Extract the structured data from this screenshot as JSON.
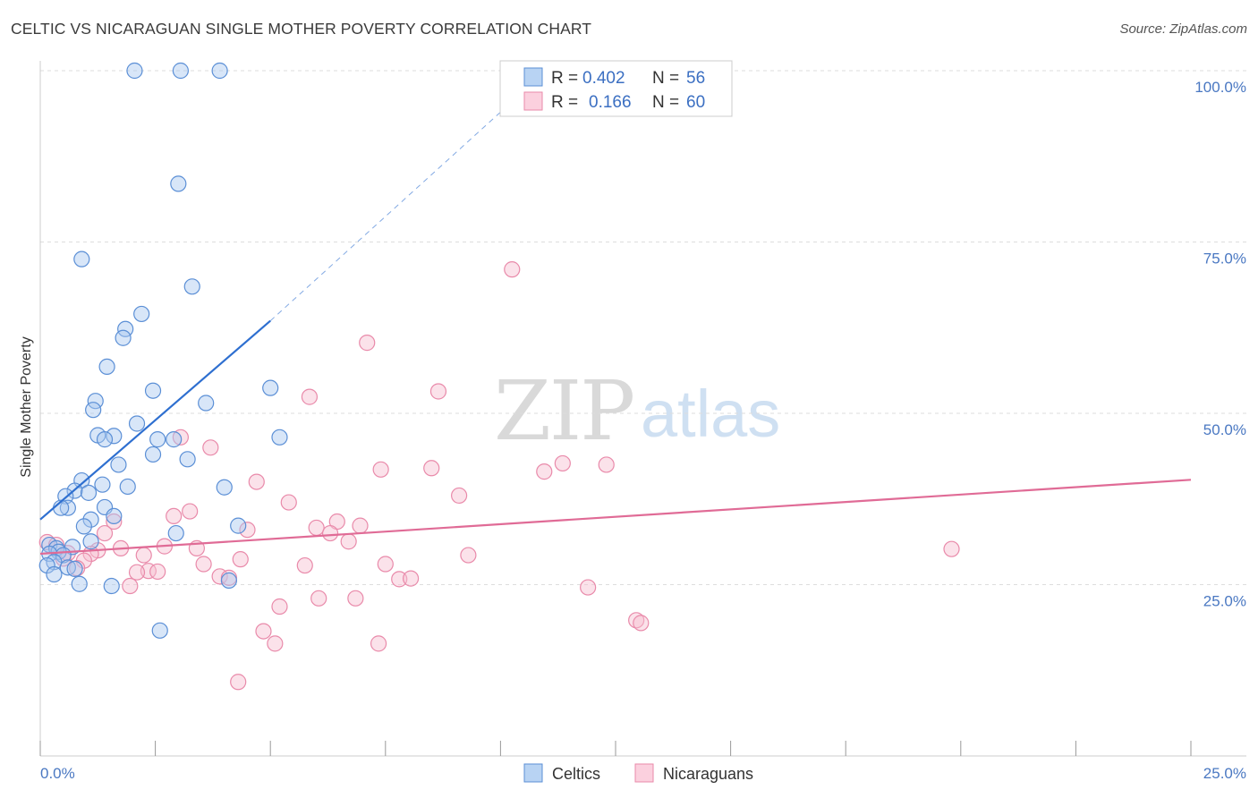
{
  "title": "CELTIC VS NICARAGUAN SINGLE MOTHER POVERTY CORRELATION CHART",
  "source": "Source: ZipAtlas.com",
  "watermark": {
    "part1": "ZIP",
    "part2": "atlas"
  },
  "colors": {
    "celtics_fill": "#a9c8f0",
    "celtics_stroke": "#5b8fd6",
    "celtics_line": "#2e6fd0",
    "nicaraguans_fill": "#f7bfd0",
    "nicaraguans_stroke": "#e98aaa",
    "nicaraguans_line": "#e06b96",
    "grid": "#dddddd",
    "axis_text": "#4a78c2"
  },
  "legend": {
    "rows": [
      {
        "r_label": "R =",
        "r_value": "0.402",
        "n_label": "N =",
        "n_value": "56"
      },
      {
        "r_label": "R =",
        "r_value": "0.166",
        "n_label": "N =",
        "n_value": "60"
      }
    ]
  },
  "bottom_legend": {
    "series1": "Celtics",
    "series2": "Nicaraguans"
  },
  "chart_data": {
    "type": "scatter",
    "title": "CELTIC VS NICARAGUAN SINGLE MOTHER POVERTY CORRELATION CHART",
    "xlabel": "",
    "ylabel": "Single Mother Poverty",
    "xlim": [
      0,
      25
    ],
    "ylim": [
      0,
      100
    ],
    "x_tick_labels": [
      "0.0%",
      "25.0%"
    ],
    "y_tick_labels": [
      "25.0%",
      "50.0%",
      "75.0%",
      "100.0%"
    ],
    "y_tick_values": [
      25,
      50,
      75,
      100
    ],
    "grid": true,
    "legend_position": "top-center",
    "series": [
      {
        "name": "Celtics",
        "r": 0.402,
        "n": 56,
        "trend": {
          "x": [
            0,
            5.0
          ],
          "y": [
            34.5,
            63.5
          ],
          "dashed_extension_to": [
            10.5,
            97
          ]
        },
        "points": [
          [
            2.05,
            100
          ],
          [
            3.05,
            100
          ],
          [
            3.9,
            100
          ],
          [
            3.0,
            83.5
          ],
          [
            0.9,
            72.5
          ],
          [
            3.3,
            68.5
          ],
          [
            2.2,
            64.5
          ],
          [
            1.85,
            62.3
          ],
          [
            1.8,
            61
          ],
          [
            1.45,
            56.8
          ],
          [
            1.2,
            51.8
          ],
          [
            1.15,
            50.5
          ],
          [
            5.0,
            53.7
          ],
          [
            2.45,
            53.3
          ],
          [
            3.6,
            51.5
          ],
          [
            2.1,
            48.5
          ],
          [
            1.25,
            46.8
          ],
          [
            1.6,
            46.7
          ],
          [
            1.4,
            46.2
          ],
          [
            2.55,
            46.2
          ],
          [
            2.9,
            46.2
          ],
          [
            5.2,
            46.5
          ],
          [
            2.45,
            44
          ],
          [
            3.2,
            43.3
          ],
          [
            1.7,
            42.5
          ],
          [
            0.9,
            40.2
          ],
          [
            1.35,
            39.6
          ],
          [
            1.9,
            39.3
          ],
          [
            4.0,
            39.2
          ],
          [
            0.75,
            38.7
          ],
          [
            1.05,
            38.4
          ],
          [
            0.55,
            37.9
          ],
          [
            0.6,
            36.2
          ],
          [
            0.45,
            36.2
          ],
          [
            1.4,
            36.3
          ],
          [
            1.6,
            35
          ],
          [
            1.1,
            34.5
          ],
          [
            4.3,
            33.6
          ],
          [
            0.95,
            33.5
          ],
          [
            2.95,
            32.5
          ],
          [
            1.1,
            31.3
          ],
          [
            0.2,
            30.8
          ],
          [
            0.7,
            30.5
          ],
          [
            0.35,
            30.3
          ],
          [
            0.4,
            29.8
          ],
          [
            0.2,
            29.5
          ],
          [
            0.5,
            29.3
          ],
          [
            0.3,
            28.3
          ],
          [
            0.15,
            27.8
          ],
          [
            0.6,
            27.5
          ],
          [
            0.75,
            27.3
          ],
          [
            0.3,
            26.5
          ],
          [
            4.1,
            25.6
          ],
          [
            0.85,
            25.1
          ],
          [
            1.55,
            24.8
          ],
          [
            2.6,
            18.3
          ]
        ]
      },
      {
        "name": "Nicaraguans",
        "r": 0.166,
        "n": 60,
        "trend": {
          "x": [
            0,
            25
          ],
          "y": [
            29.5,
            40.3
          ]
        },
        "points": [
          [
            10.25,
            71
          ],
          [
            7.1,
            60.3
          ],
          [
            8.65,
            53.2
          ],
          [
            5.85,
            52.4
          ],
          [
            3.05,
            46.5
          ],
          [
            3.7,
            45
          ],
          [
            8.5,
            42
          ],
          [
            11.35,
            42.7
          ],
          [
            12.3,
            42.5
          ],
          [
            10.95,
            41.5
          ],
          [
            7.4,
            41.8
          ],
          [
            4.7,
            40
          ],
          [
            9.1,
            38
          ],
          [
            5.4,
            37
          ],
          [
            3.25,
            35.7
          ],
          [
            2.9,
            35
          ],
          [
            6.45,
            34.2
          ],
          [
            1.6,
            34.2
          ],
          [
            6.95,
            33.6
          ],
          [
            6.0,
            33.3
          ],
          [
            4.5,
            33
          ],
          [
            1.4,
            32.5
          ],
          [
            6.3,
            32.5
          ],
          [
            6.7,
            31.3
          ],
          [
            19.8,
            30.2
          ],
          [
            1.75,
            30.3
          ],
          [
            2.7,
            30.6
          ],
          [
            3.4,
            30.3
          ],
          [
            1.25,
            30
          ],
          [
            1.1,
            29.5
          ],
          [
            2.25,
            29.3
          ],
          [
            9.3,
            29.3
          ],
          [
            0.5,
            28.8
          ],
          [
            0.95,
            28.5
          ],
          [
            4.35,
            28.7
          ],
          [
            3.55,
            28
          ],
          [
            7.5,
            28
          ],
          [
            5.75,
            27.8
          ],
          [
            0.8,
            27.4
          ],
          [
            2.35,
            27
          ],
          [
            2.55,
            26.9
          ],
          [
            2.1,
            26.8
          ],
          [
            3.9,
            26.2
          ],
          [
            4.1,
            26
          ],
          [
            7.8,
            25.8
          ],
          [
            8.05,
            25.9
          ],
          [
            11.9,
            24.6
          ],
          [
            1.95,
            24.8
          ],
          [
            6.05,
            23
          ],
          [
            6.85,
            23
          ],
          [
            5.2,
            21.8
          ],
          [
            12.95,
            19.8
          ],
          [
            13.05,
            19.4
          ],
          [
            4.85,
            18.2
          ],
          [
            5.1,
            16.4
          ],
          [
            7.35,
            16.4
          ],
          [
            4.3,
            10.8
          ],
          [
            0.15,
            31.2
          ],
          [
            0.35,
            30.8
          ],
          [
            0.6,
            29.6
          ]
        ]
      }
    ]
  }
}
